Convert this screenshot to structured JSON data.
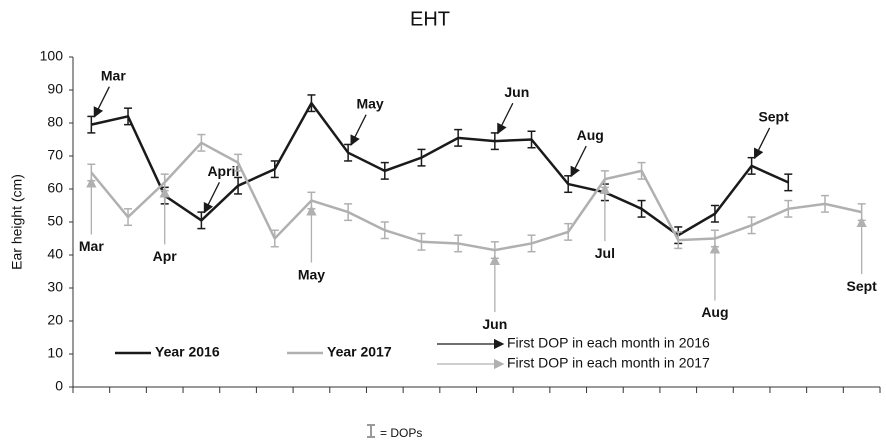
{
  "chart_data": {
    "type": "line",
    "title": "EHT",
    "y_label": "Ear height (cm)",
    "categories": [
      null,
      null,
      null,
      null,
      null,
      null,
      null,
      null,
      null,
      null,
      null,
      null,
      null,
      null,
      null,
      null,
      null,
      null,
      null,
      null,
      null,
      null
    ],
    "ylim": [
      0,
      100
    ],
    "yticks": [
      0,
      10,
      20,
      30,
      40,
      50,
      60,
      70,
      80,
      90,
      100
    ],
    "series": [
      {
        "name": "Year 2016",
        "color": "#1a1a1a",
        "error": 2.5,
        "values": [
          79.5,
          82,
          58,
          50.5,
          61,
          66,
          86,
          71,
          65.5,
          69.5,
          75.5,
          74.5,
          75,
          61.5,
          59,
          54,
          46,
          52.5,
          67,
          62,
          null,
          null
        ],
        "arrow_label": "First DOP in each month in 2016",
        "annotations": [
          {
            "text": "Mar",
            "index": 0
          },
          {
            "text": "April",
            "index": 3
          },
          {
            "text": "May",
            "index": 7
          },
          {
            "text": "Jun",
            "index": 11
          },
          {
            "text": "Aug",
            "index": 13
          },
          {
            "text": "Sept",
            "index": 18
          }
        ]
      },
      {
        "name": "Year 2017",
        "color": "#b0b0b0",
        "error": 2.5,
        "values": [
          65,
          51.5,
          62,
          74,
          68,
          45,
          56.5,
          53,
          47.5,
          44,
          43.5,
          41.5,
          43.5,
          47,
          63,
          65.5,
          44.5,
          45,
          49,
          54,
          55.5,
          53
        ],
        "arrow_label": "First DOP in each month in 2017",
        "annotations": [
          {
            "text": "Mar",
            "index": 0
          },
          {
            "text": "Apr",
            "index": 2
          },
          {
            "text": "May",
            "index": 6
          },
          {
            "text": "Jun",
            "index": 11
          },
          {
            "text": "Jul",
            "index": 14
          },
          {
            "text": "Aug",
            "index": 17
          },
          {
            "text": "Sept",
            "index": 21
          }
        ]
      }
    ],
    "error_bar_note": "= DOPs"
  }
}
